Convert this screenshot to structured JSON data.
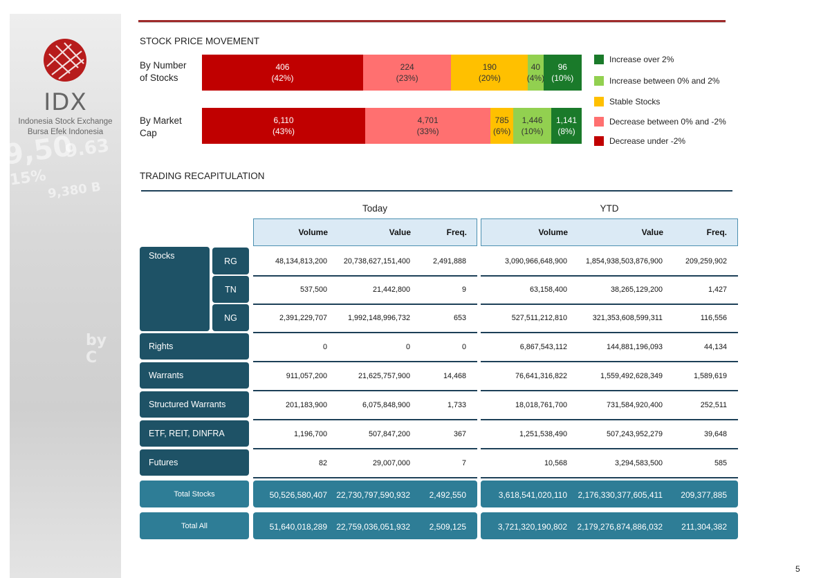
{
  "logo": {
    "title": "IDX",
    "subtitle_1": "Indonesia Stock Exchange",
    "subtitle_2": "Bursa Efek Indonesia"
  },
  "stock_price_movement": {
    "title": "STOCK PRICE MOVEMENT",
    "by_number": {
      "label": "By Number of Stocks",
      "segments": [
        {
          "value": "406",
          "pct": "(42%)",
          "share": 0.42,
          "color": "#c00000",
          "text_color": "#ffffff"
        },
        {
          "value": "224",
          "pct": "(23%)",
          "share": 0.23,
          "color": "#ff7070",
          "text_color": "#333333"
        },
        {
          "value": "190",
          "pct": "(20%)",
          "share": 0.2,
          "color": "#ffc000",
          "text_color": "#333333"
        },
        {
          "value": "40",
          "pct": "(4%)",
          "share": 0.04,
          "color": "#92d050",
          "text_color": "#333333"
        },
        {
          "value": "96",
          "pct": "(10%)",
          "share": 0.1,
          "color": "#1a7a2a",
          "text_color": "#ffffff"
        }
      ]
    },
    "by_market_cap": {
      "label": "By Market Cap",
      "segments": [
        {
          "value": "6,110",
          "pct": "(43%)",
          "share": 0.43,
          "color": "#c00000",
          "text_color": "#ffffff"
        },
        {
          "value": "4,701",
          "pct": "(33%)",
          "share": 0.33,
          "color": "#ff7070",
          "text_color": "#333333"
        },
        {
          "value": "785",
          "pct": "(6%)",
          "share": 0.06,
          "color": "#ffc000",
          "text_color": "#333333"
        },
        {
          "value": "1,446",
          "pct": "(10%)",
          "share": 0.1,
          "color": "#92d050",
          "text_color": "#333333"
        },
        {
          "value": "1,141",
          "pct": "(8%)",
          "share": 0.08,
          "color": "#1a7a2a",
          "text_color": "#ffffff"
        }
      ]
    },
    "legend": [
      {
        "label": "Increase over 2%",
        "color": "#1a7a2a"
      },
      {
        "label": "Increase between 0% and 2%",
        "color": "#92d050"
      },
      {
        "label": "Stable Stocks",
        "color": "#ffc000"
      },
      {
        "label": "Decrease between 0% and -2%",
        "color": "#ff7070"
      },
      {
        "label": "Decrease under -2%",
        "color": "#c00000"
      }
    ]
  },
  "trading": {
    "title": "TRADING RECAPITULATION",
    "today_label": "Today",
    "ytd_label": "YTD",
    "columns": [
      "Volume",
      "Value",
      "Freq."
    ],
    "stocks_label": "Stocks",
    "rows": [
      {
        "sub": "RG",
        "today": [
          "48,134,813,200",
          "20,738,627,151,400",
          "2,491,888"
        ],
        "ytd": [
          "3,090,966,648,900",
          "1,854,938,503,876,900",
          "209,259,902"
        ]
      },
      {
        "sub": "TN",
        "today": [
          "537,500",
          "21,442,800",
          "9"
        ],
        "ytd": [
          "63,158,400",
          "38,265,129,200",
          "1,427"
        ]
      },
      {
        "sub": "NG",
        "today": [
          "2,391,229,707",
          "1,992,148,996,732",
          "653"
        ],
        "ytd": [
          "527,511,212,810",
          "321,353,608,599,311",
          "116,556"
        ]
      },
      {
        "cat": "Rights",
        "today": [
          "0",
          "0",
          "0"
        ],
        "ytd": [
          "6,867,543,112",
          "144,881,196,093",
          "44,134"
        ]
      },
      {
        "cat": "Warrants",
        "today": [
          "911,057,200",
          "21,625,757,900",
          "14,468"
        ],
        "ytd": [
          "76,641,316,822",
          "1,559,492,628,349",
          "1,589,619"
        ]
      },
      {
        "cat": "Structured Warrants",
        "today": [
          "201,183,900",
          "6,075,848,900",
          "1,733"
        ],
        "ytd": [
          "18,018,761,700",
          "731,584,920,400",
          "252,511"
        ]
      },
      {
        "cat": "ETF, REIT, DINFRA",
        "today": [
          "1,196,700",
          "507,847,200",
          "367"
        ],
        "ytd": [
          "1,251,538,490",
          "507,243,952,279",
          "39,648"
        ]
      },
      {
        "cat": "Futures",
        "today": [
          "82",
          "29,007,000",
          "7"
        ],
        "ytd": [
          "10,568",
          "3,294,583,500",
          "585"
        ]
      }
    ],
    "totals": [
      {
        "label": "Total Stocks",
        "today": [
          "50,526,580,407",
          "22,730,797,590,932",
          "2,492,550"
        ],
        "ytd": [
          "3,618,541,020,110",
          "2,176,330,377,605,411",
          "209,377,885"
        ]
      },
      {
        "label": "Total All",
        "today": [
          "51,640,018,289",
          "22,759,036,051,932",
          "2,509,125"
        ],
        "ytd": [
          "3,721,320,190,802",
          "2,179,276,874,886,032",
          "211,304,382"
        ]
      }
    ]
  },
  "page_number": "5"
}
